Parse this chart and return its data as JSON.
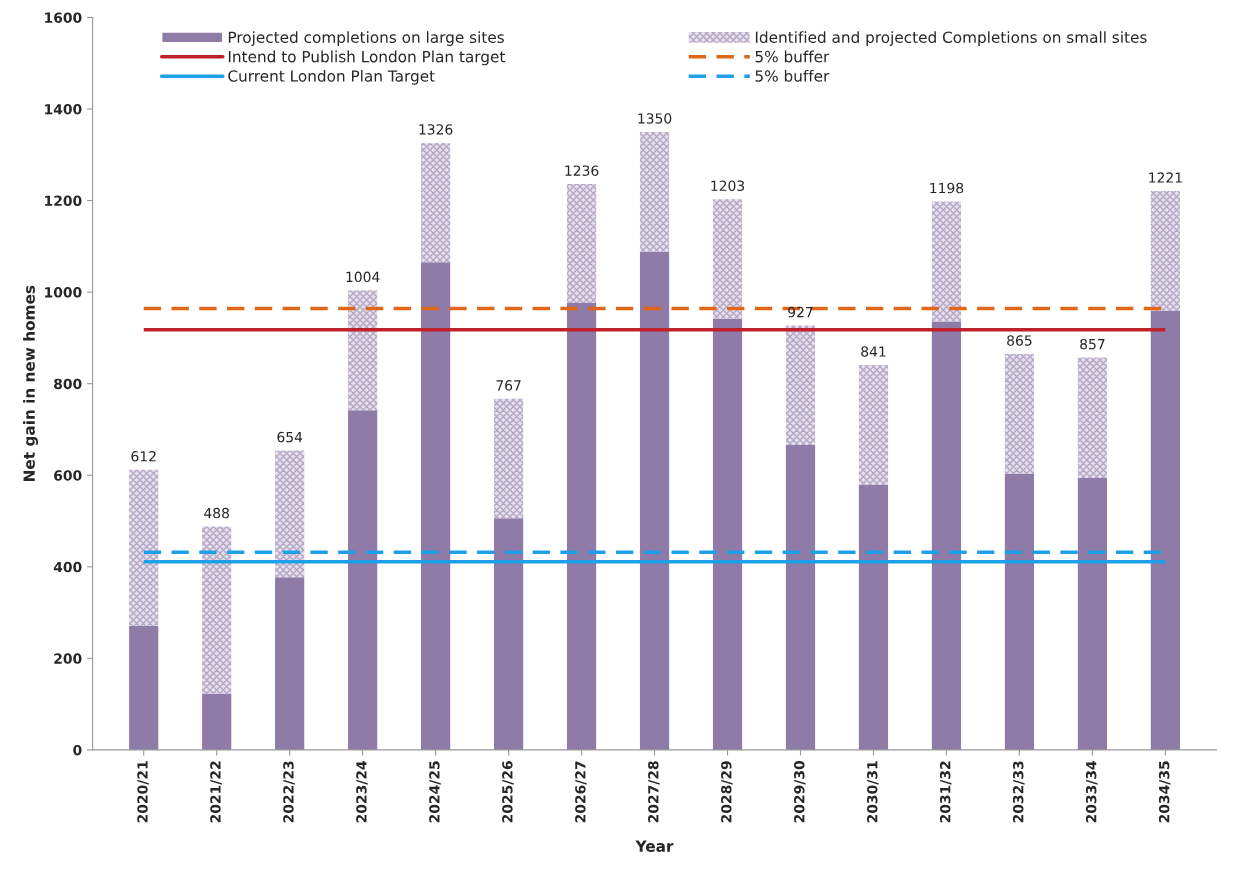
{
  "chart_data": {
    "type": "bar",
    "stacked": true,
    "xlabel": "Year",
    "ylabel": "Net gain in new homes",
    "categories": [
      "2020/21",
      "2021/22",
      "2022/23",
      "2023/24",
      "2024/25",
      "2025/26",
      "2026/27",
      "2027/28",
      "2028/29",
      "2029/30",
      "2030/31",
      "2031/32",
      "2032/33",
      "2033/34",
      "2034/35"
    ],
    "series": [
      {
        "name": "Projected completions on large sites",
        "color": "#8e7ba8",
        "values": [
          271,
          123,
          377,
          742,
          1065,
          506,
          976,
          1088,
          942,
          666,
          580,
          936,
          604,
          594,
          960
        ]
      },
      {
        "name": "Identified and projected Completions on small sites",
        "color": "#b4a8c6",
        "values": [
          341,
          365,
          277,
          262,
          261,
          261,
          260,
          262,
          261,
          261,
          261,
          262,
          261,
          263,
          261
        ]
      }
    ],
    "totals": [
      "612",
      "488",
      "654",
      "1004",
      "1326",
      "767",
      "1236",
      "1350",
      "1203",
      "927",
      "841",
      "1198",
      "865",
      "857",
      "1221"
    ],
    "ref_lines": [
      {
        "axis": "y",
        "value": 918,
        "label": "Intend to Publish London Plan target",
        "color": "#c0202a",
        "line_style": "solid"
      },
      {
        "axis": "y",
        "value": 411,
        "label": "Current London Plan Target",
        "color": "#1ea0e8",
        "line_style": "solid"
      },
      {
        "axis": "y",
        "value": 964,
        "label": "5% buffer",
        "color": "#e0661a",
        "line_style": "dashed"
      },
      {
        "axis": "y",
        "value": 432,
        "label": "5% buffer",
        "color": "#1ea0e8",
        "line_style": "dashed"
      }
    ],
    "ylim": [
      0,
      1600
    ],
    "yticks": [
      0,
      200,
      400,
      600,
      800,
      1000,
      1200,
      1400,
      1600
    ],
    "grid": false,
    "legend": "top"
  }
}
